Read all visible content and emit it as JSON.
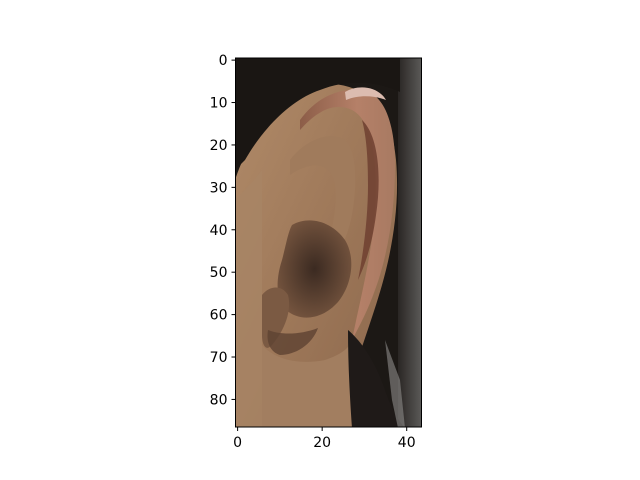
{
  "image": {
    "subject": "ear-photo",
    "pixel_grid": {
      "width": 44,
      "height": 87
    }
  },
  "axes": {
    "xlim": [
      -0.5,
      43.5
    ],
    "ylim": [
      86.5,
      -0.5
    ],
    "y_inverted": true,
    "grid": false,
    "x_ticks": [
      0,
      20,
      40
    ],
    "y_ticks": [
      0,
      10,
      20,
      30,
      40,
      50,
      60,
      70,
      80
    ]
  },
  "colors": {
    "hair": "#1a1714",
    "skin_light": "#b8906e",
    "skin_mid": "#9c7556",
    "skin_shadow": "#5a3f2e",
    "concha_dark": "#3a2820",
    "helix_highlight": "#d9b6a8",
    "background_wall": "#4f4e4c",
    "axis": "#000000"
  }
}
